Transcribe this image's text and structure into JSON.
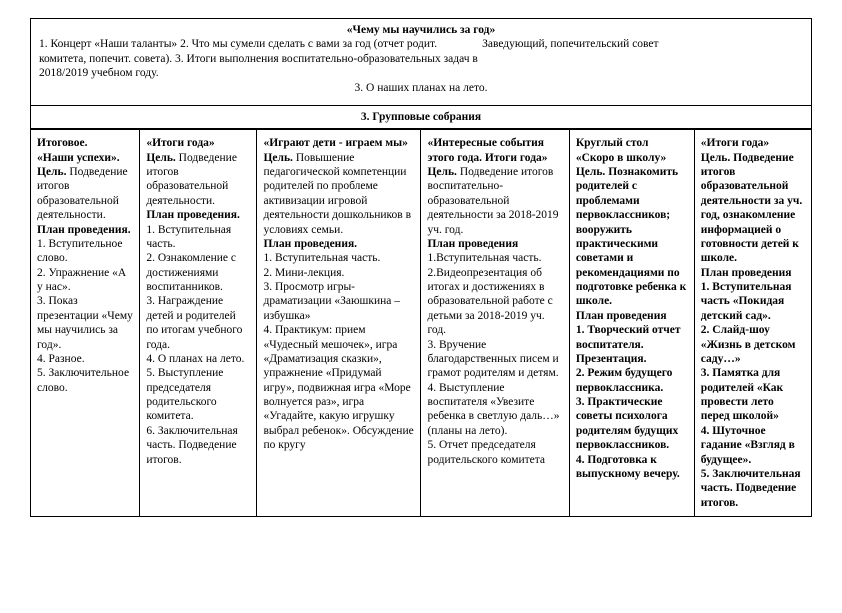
{
  "top": {
    "title": "«Чему мы научились за год»",
    "left_lines": [
      "1. Концерт «Наши таланты»",
      "2. Что мы сумели сделать с вами за год (отчет родит. комитета,",
      "попечит. совета).",
      "3. Итоги выполнения воспитательно-образовательных задач в 2018/2019 учебном году."
    ],
    "right_line": "Заведующий, попечительский совет",
    "center_line": "3. О наших планах на лето."
  },
  "section_title": "3. Групповые собрания",
  "columns": [
    {
      "lines": [
        {
          "t": "Итоговое.",
          "b": true
        },
        {
          "t": "«Наши успехи».",
          "b": true
        },
        {
          "t": "Цель. Подведение итогов образовательной деятельности.",
          "b": false,
          "lead_bold": "Цель."
        },
        {
          "t": "План проведения.",
          "b": true
        },
        {
          "t": "1. Вступительное слово.",
          "b": false
        },
        {
          "t": "2. Упражнение «А у нас».",
          "b": false
        },
        {
          "t": "3. Показ презентации «Чему мы научились за год».",
          "b": false
        },
        {
          "t": "4. Разное.",
          "b": false
        },
        {
          "t": "5. Заключительное слово.",
          "b": false
        }
      ]
    },
    {
      "lines": [
        {
          "t": "«Итоги года»",
          "b": true
        },
        {
          "t": "Цель. Подведение итогов образовательной деятельности.",
          "b": false,
          "lead_bold": "Цель."
        },
        {
          "t": "План проведения.",
          "b": true
        },
        {
          "t": "1. Вступительная часть.",
          "b": false
        },
        {
          "t": "2. Ознакомление с достижениями воспитанников.",
          "b": false
        },
        {
          "t": "3. Награждение детей и родителей по итогам учебного года.",
          "b": false
        },
        {
          "t": "4. О планах на лето.",
          "b": false
        },
        {
          "t": "5. Выступление председателя родительского комитета.",
          "b": false
        },
        {
          "t": "6. Заключительная часть. Подведение итогов.",
          "b": false
        }
      ]
    },
    {
      "lines": [
        {
          "t": "«Играют дети - играем мы»",
          "b": true
        },
        {
          "t": "Цель. Повышение педагогической компетенции родителей по проблеме активизации игровой деятельности дошкольников в условиях семьи.",
          "b": false,
          "lead_bold": "Цель."
        },
        {
          "t": "План проведения.",
          "b": true
        },
        {
          "t": "1. Вступительная часть.",
          "b": false
        },
        {
          "t": "2. Мини-лекция.",
          "b": false
        },
        {
          "t": "3. Просмотр игры-драматизации «Заюшкина – избушка»",
          "b": false
        },
        {
          "t": "4. Практикум: прием «Чудесный мешочек», игра «Драматизация сказки», упражнение «Придумай игру», подвижная игра «Море волнуется раз», игра «Угадайте, какую игрушку выбрал ребенок». Обсуждение по кругу",
          "b": false
        }
      ]
    },
    {
      "lines": [
        {
          "t": "«Интересные события этого года. Итоги года»",
          "b": true
        },
        {
          "t": "Цель. Подведение итогов воспитательно-образовательной деятельности за 2018-2019 уч. год.",
          "b": false,
          "lead_bold": "Цель."
        },
        {
          "t": "План проведения",
          "b": true
        },
        {
          "t": "1.Вступительная часть.",
          "b": false
        },
        {
          "t": "2.Видеопрезентация об итогах и достижениях в образовательной работе с детьми за 2018-2019 уч. год.",
          "b": false
        },
        {
          "t": "3. Вручение благодарственных писем и грамот родителям и детям.",
          "b": false
        },
        {
          "t": "4. Выступление воспитателя «Увезите ребенка в светлую даль…» (планы на лето).",
          "b": false
        },
        {
          "t": "5. Отчет председателя родительского комитета",
          "b": false
        }
      ]
    },
    {
      "lines": [
        {
          "t": "Круглый стол",
          "b": true
        },
        {
          "t": "«Скоро в школу»",
          "b": true
        },
        {
          "t": "Цель. Познакомить родителей с проблемами первоклассников; вооружить практическими советами и рекомендациями по подготовке ребенка к школе.",
          "b": true,
          "lead_bold": "Цель."
        },
        {
          "t": "План проведения",
          "b": true
        },
        {
          "t": "1. Творческий отчет воспитателя. Презентация.",
          "b": true
        },
        {
          "t": "2. Режим будущего первоклассника.",
          "b": true
        },
        {
          "t": "3. Практические советы психолога родителям будущих первоклассников.",
          "b": true
        },
        {
          "t": "4. Подготовка к выпускному вечеру.",
          "b": true
        }
      ]
    },
    {
      "lines": [
        {
          "t": "«Итоги года»",
          "b": true
        },
        {
          "t": "Цель. Подведение итогов образовательной деятельности за уч. год, ознакомление информацией о готовности детей к школе.",
          "b": true,
          "lead_bold": "Цель."
        },
        {
          "t": "План проведения",
          "b": true
        },
        {
          "t": "1. Вступительная часть «Покидая детский сад».",
          "b": true
        },
        {
          "t": "2. Слайд-шоу «Жизнь в детском саду…»",
          "b": true
        },
        {
          "t": "3. Памятка для родителей «Как провести лето перед школой»",
          "b": true
        },
        {
          "t": "4. Шуточное гадание «Взгляд в будущее».",
          "b": true
        },
        {
          "t": "5. Заключительная часть. Подведение итогов.",
          "b": true
        }
      ]
    }
  ]
}
